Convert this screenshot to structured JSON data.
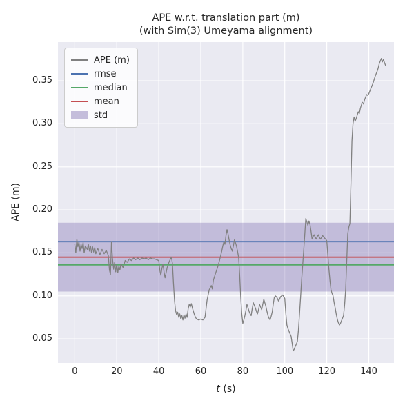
{
  "chart_data": {
    "type": "line",
    "title": "APE w.r.t. translation part (m)",
    "subtitle": "(with Sim(3) Umeyama alignment)",
    "xlabel_italic": "t",
    "xlabel_rest": " (s)",
    "ylabel": "APE (m)",
    "xlim": [
      -8,
      152
    ],
    "ylim": [
      0.022,
      0.395
    ],
    "x_ticks": [
      0,
      20,
      40,
      60,
      80,
      100,
      120,
      140
    ],
    "y_ticks": [
      "0.05",
      "0.10",
      "0.15",
      "0.20",
      "0.25",
      "0.30",
      "0.35"
    ],
    "plot_bg": "#eaeaf2",
    "grid_color": "#ffffff",
    "stat_lines": [
      {
        "name": "rmse",
        "value": 0.163,
        "color": "#4c72b0"
      },
      {
        "name": "median",
        "value": 0.136,
        "color": "#55a868"
      },
      {
        "name": "mean",
        "value": 0.145,
        "color": "#c44e52"
      }
    ],
    "std_band": {
      "name": "std",
      "low": 0.105,
      "high": 0.185,
      "color": "#8172b2",
      "opacity": 0.38
    },
    "series": {
      "name": "APE (m)",
      "color": "#808080",
      "points": [
        [
          0,
          0.16
        ],
        [
          0.5,
          0.15
        ],
        [
          1,
          0.166
        ],
        [
          1.5,
          0.157
        ],
        [
          2,
          0.163
        ],
        [
          2.5,
          0.152
        ],
        [
          3,
          0.16
        ],
        [
          3.5,
          0.155
        ],
        [
          4,
          0.162
        ],
        [
          4.5,
          0.15
        ],
        [
          5,
          0.158
        ],
        [
          6,
          0.154
        ],
        [
          6.5,
          0.16
        ],
        [
          7,
          0.152
        ],
        [
          7.5,
          0.158
        ],
        [
          8,
          0.15
        ],
        [
          8.5,
          0.157
        ],
        [
          9,
          0.151
        ],
        [
          9.5,
          0.156
        ],
        [
          10,
          0.149
        ],
        [
          11,
          0.155
        ],
        [
          12,
          0.148
        ],
        [
          13,
          0.154
        ],
        [
          14,
          0.149
        ],
        [
          15,
          0.153
        ],
        [
          16,
          0.147
        ],
        [
          16.5,
          0.13
        ],
        [
          17,
          0.125
        ],
        [
          17.5,
          0.163
        ],
        [
          18,
          0.143
        ],
        [
          18.5,
          0.131
        ],
        [
          19,
          0.139
        ],
        [
          19.5,
          0.128
        ],
        [
          20,
          0.137
        ],
        [
          20.5,
          0.127
        ],
        [
          21,
          0.135
        ],
        [
          21.5,
          0.13
        ],
        [
          22,
          0.137
        ],
        [
          23,
          0.133
        ],
        [
          24,
          0.141
        ],
        [
          25,
          0.139
        ],
        [
          26,
          0.143
        ],
        [
          27,
          0.141
        ],
        [
          28,
          0.144
        ],
        [
          29,
          0.142
        ],
        [
          30,
          0.144
        ],
        [
          31,
          0.142
        ],
        [
          32,
          0.144
        ],
        [
          33,
          0.143
        ],
        [
          34,
          0.144
        ],
        [
          35,
          0.142
        ],
        [
          36,
          0.144
        ],
        [
          37,
          0.143
        ],
        [
          38,
          0.143
        ],
        [
          39,
          0.142
        ],
        [
          40,
          0.141
        ],
        [
          40.5,
          0.13
        ],
        [
          41,
          0.124
        ],
        [
          41.5,
          0.132
        ],
        [
          42,
          0.137
        ],
        [
          42.5,
          0.128
        ],
        [
          43,
          0.121
        ],
        [
          43.5,
          0.127
        ],
        [
          44,
          0.133
        ],
        [
          45,
          0.14
        ],
        [
          46,
          0.145
        ],
        [
          46.5,
          0.138
        ],
        [
          47,
          0.115
        ],
        [
          47.5,
          0.095
        ],
        [
          48,
          0.083
        ],
        [
          48.5,
          0.078
        ],
        [
          49,
          0.081
        ],
        [
          49.5,
          0.075
        ],
        [
          50,
          0.079
        ],
        [
          50.5,
          0.073
        ],
        [
          51,
          0.077
        ],
        [
          51.5,
          0.072
        ],
        [
          52,
          0.078
        ],
        [
          52.5,
          0.074
        ],
        [
          53,
          0.079
        ],
        [
          53.5,
          0.075
        ],
        [
          54,
          0.085
        ],
        [
          54.5,
          0.09
        ],
        [
          55,
          0.087
        ],
        [
          55.5,
          0.091
        ],
        [
          56,
          0.086
        ],
        [
          56.5,
          0.082
        ],
        [
          57,
          0.078
        ],
        [
          57.5,
          0.075
        ],
        [
          58,
          0.073
        ],
        [
          59,
          0.072
        ],
        [
          60,
          0.073
        ],
        [
          61,
          0.072
        ],
        [
          62,
          0.075
        ],
        [
          62.5,
          0.085
        ],
        [
          63,
          0.095
        ],
        [
          64,
          0.107
        ],
        [
          65,
          0.112
        ],
        [
          65.5,
          0.108
        ],
        [
          66,
          0.118
        ],
        [
          67,
          0.126
        ],
        [
          68,
          0.133
        ],
        [
          69,
          0.142
        ],
        [
          70,
          0.152
        ],
        [
          70.5,
          0.158
        ],
        [
          71,
          0.163
        ],
        [
          71.5,
          0.16
        ],
        [
          72,
          0.17
        ],
        [
          72.5,
          0.177
        ],
        [
          73,
          0.172
        ],
        [
          73.5,
          0.165
        ],
        [
          74,
          0.159
        ],
        [
          74.5,
          0.155
        ],
        [
          75,
          0.152
        ],
        [
          75.5,
          0.158
        ],
        [
          76,
          0.165
        ],
        [
          76.5,
          0.162
        ],
        [
          77,
          0.158
        ],
        [
          77.5,
          0.152
        ],
        [
          78,
          0.145
        ],
        [
          78.5,
          0.125
        ],
        [
          79,
          0.1
        ],
        [
          79.5,
          0.08
        ],
        [
          80,
          0.068
        ],
        [
          80.5,
          0.072
        ],
        [
          81,
          0.077
        ],
        [
          81.5,
          0.083
        ],
        [
          82,
          0.09
        ],
        [
          82.5,
          0.086
        ],
        [
          83,
          0.082
        ],
        [
          83.5,
          0.079
        ],
        [
          84,
          0.077
        ],
        [
          84.5,
          0.085
        ],
        [
          85,
          0.092
        ],
        [
          85.5,
          0.089
        ],
        [
          86,
          0.086
        ],
        [
          86.5,
          0.082
        ],
        [
          87,
          0.079
        ],
        [
          87.5,
          0.084
        ],
        [
          88,
          0.09
        ],
        [
          88.5,
          0.087
        ],
        [
          89,
          0.084
        ],
        [
          89.5,
          0.09
        ],
        [
          90,
          0.096
        ],
        [
          90.5,
          0.092
        ],
        [
          91,
          0.088
        ],
        [
          91.5,
          0.082
        ],
        [
          92,
          0.077
        ],
        [
          92.5,
          0.074
        ],
        [
          93,
          0.072
        ],
        [
          93.5,
          0.076
        ],
        [
          94,
          0.081
        ],
        [
          94.5,
          0.09
        ],
        [
          95,
          0.098
        ],
        [
          95.5,
          0.1
        ],
        [
          96,
          0.099
        ],
        [
          96.5,
          0.097
        ],
        [
          97,
          0.094
        ],
        [
          97.5,
          0.096
        ],
        [
          98,
          0.099
        ],
        [
          98.5,
          0.1
        ],
        [
          99,
          0.101
        ],
        [
          99.5,
          0.099
        ],
        [
          100,
          0.097
        ],
        [
          100.5,
          0.08
        ],
        [
          101,
          0.066
        ],
        [
          101.5,
          0.062
        ],
        [
          102,
          0.059
        ],
        [
          102.5,
          0.056
        ],
        [
          103,
          0.053
        ],
        [
          103.5,
          0.045
        ],
        [
          104,
          0.036
        ],
        [
          104.5,
          0.038
        ],
        [
          105,
          0.041
        ],
        [
          105.5,
          0.044
        ],
        [
          106,
          0.047
        ],
        [
          106.5,
          0.06
        ],
        [
          107,
          0.078
        ],
        [
          107.5,
          0.098
        ],
        [
          108,
          0.118
        ],
        [
          108.5,
          0.135
        ],
        [
          109,
          0.152
        ],
        [
          109.5,
          0.17
        ],
        [
          110,
          0.19
        ],
        [
          110.5,
          0.186
        ],
        [
          111,
          0.182
        ],
        [
          111.5,
          0.187
        ],
        [
          112,
          0.183
        ],
        [
          112.5,
          0.175
        ],
        [
          113,
          0.166
        ],
        [
          113.5,
          0.169
        ],
        [
          114,
          0.171
        ],
        [
          114.5,
          0.168
        ],
        [
          115,
          0.166
        ],
        [
          115.5,
          0.169
        ],
        [
          116,
          0.171
        ],
        [
          116.5,
          0.168
        ],
        [
          117,
          0.166
        ],
        [
          117.5,
          0.168
        ],
        [
          118,
          0.17
        ],
        [
          118.5,
          0.169
        ],
        [
          119,
          0.167
        ],
        [
          119.5,
          0.166
        ],
        [
          120,
          0.164
        ],
        [
          120.5,
          0.148
        ],
        [
          121,
          0.132
        ],
        [
          121.5,
          0.118
        ],
        [
          122,
          0.107
        ],
        [
          122.5,
          0.103
        ],
        [
          123,
          0.1
        ],
        [
          123.5,
          0.092
        ],
        [
          124,
          0.086
        ],
        [
          124.5,
          0.079
        ],
        [
          125,
          0.073
        ],
        [
          125.5,
          0.069
        ],
        [
          126,
          0.066
        ],
        [
          126.5,
          0.068
        ],
        [
          127,
          0.071
        ],
        [
          127.5,
          0.074
        ],
        [
          128,
          0.077
        ],
        [
          128.5,
          0.09
        ],
        [
          129,
          0.108
        ],
        [
          129.5,
          0.14
        ],
        [
          130,
          0.172
        ],
        [
          130.5,
          0.18
        ],
        [
          131,
          0.184
        ],
        [
          131.5,
          0.23
        ],
        [
          132,
          0.28
        ],
        [
          132.5,
          0.3
        ],
        [
          133,
          0.308
        ],
        [
          133.5,
          0.303
        ],
        [
          134,
          0.306
        ],
        [
          134.5,
          0.31
        ],
        [
          135,
          0.314
        ],
        [
          135.5,
          0.312
        ],
        [
          136,
          0.318
        ],
        [
          136.5,
          0.322
        ],
        [
          137,
          0.325
        ],
        [
          137.5,
          0.323
        ],
        [
          138,
          0.328
        ],
        [
          138.5,
          0.331
        ],
        [
          139,
          0.334
        ],
        [
          139.5,
          0.333
        ],
        [
          140,
          0.335
        ],
        [
          140.5,
          0.338
        ],
        [
          141,
          0.341
        ],
        [
          141.5,
          0.344
        ],
        [
          142,
          0.347
        ],
        [
          142.5,
          0.351
        ],
        [
          143,
          0.355
        ],
        [
          143.5,
          0.358
        ],
        [
          144,
          0.361
        ],
        [
          144.5,
          0.365
        ],
        [
          145,
          0.37
        ],
        [
          145.5,
          0.373
        ],
        [
          146,
          0.376
        ],
        [
          146.5,
          0.372
        ],
        [
          147,
          0.375
        ],
        [
          147.5,
          0.371
        ],
        [
          148,
          0.368
        ]
      ]
    },
    "legend": [
      {
        "label": "APE (m)",
        "type": "line",
        "color": "#808080"
      },
      {
        "label": "rmse",
        "type": "line",
        "color": "#4c72b0"
      },
      {
        "label": "median",
        "type": "line",
        "color": "#55a868"
      },
      {
        "label": "mean",
        "type": "line",
        "color": "#c44e52"
      },
      {
        "label": "std",
        "type": "patch",
        "color": "#8172b2"
      }
    ]
  }
}
